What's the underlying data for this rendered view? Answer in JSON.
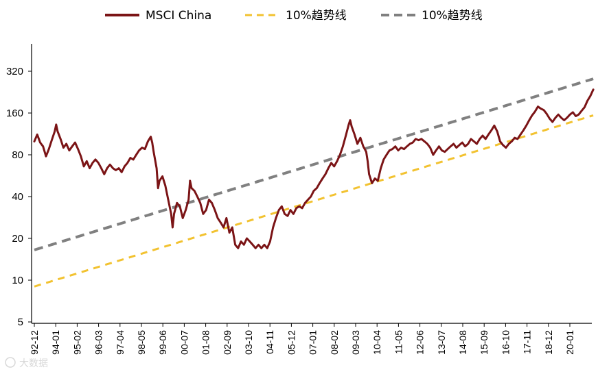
{
  "chart_data": {
    "type": "line",
    "y_scale": "log2",
    "ylim": [
      5,
      400
    ],
    "y_ticks": [
      "5",
      "10",
      "20",
      "40",
      "80",
      "160",
      "320"
    ],
    "x_ticks": [
      "92-12",
      "94-01",
      "95-02",
      "96-03",
      "97-04",
      "98-05",
      "99-06",
      "00-07",
      "01-08",
      "02-09",
      "03-10",
      "04-11",
      "05-12",
      "07-01",
      "08-02",
      "09-03",
      "10-04",
      "11-05",
      "12-06",
      "13-07",
      "14-08",
      "15-09",
      "16-10",
      "17-11",
      "18-12",
      "20-01"
    ],
    "grid": false,
    "legend_position": "top",
    "series": [
      {
        "name": "MSCI China",
        "style": "solid",
        "color": "#7b1416",
        "points": [
          [
            0,
            100
          ],
          [
            2,
            112
          ],
          [
            4,
            98
          ],
          [
            6,
            92
          ],
          [
            8,
            78
          ],
          [
            10,
            88
          ],
          [
            12,
            102
          ],
          [
            14,
            118
          ],
          [
            15,
            132
          ],
          [
            16,
            118
          ],
          [
            18,
            104
          ],
          [
            20,
            90
          ],
          [
            22,
            96
          ],
          [
            24,
            86
          ],
          [
            26,
            92
          ],
          [
            28,
            98
          ],
          [
            30,
            88
          ],
          [
            32,
            78
          ],
          [
            34,
            66
          ],
          [
            36,
            72
          ],
          [
            38,
            64
          ],
          [
            40,
            70
          ],
          [
            42,
            74
          ],
          [
            44,
            70
          ],
          [
            46,
            64
          ],
          [
            48,
            58
          ],
          [
            50,
            64
          ],
          [
            52,
            68
          ],
          [
            54,
            64
          ],
          [
            56,
            62
          ],
          [
            58,
            64
          ],
          [
            60,
            60
          ],
          [
            62,
            66
          ],
          [
            64,
            70
          ],
          [
            66,
            76
          ],
          [
            68,
            74
          ],
          [
            70,
            80
          ],
          [
            72,
            86
          ],
          [
            74,
            90
          ],
          [
            76,
            88
          ],
          [
            78,
            100
          ],
          [
            80,
            108
          ],
          [
            81,
            98
          ],
          [
            82,
            84
          ],
          [
            84,
            64
          ],
          [
            85,
            46
          ],
          [
            86,
            52
          ],
          [
            88,
            56
          ],
          [
            90,
            48
          ],
          [
            92,
            38
          ],
          [
            94,
            30
          ],
          [
            95,
            24
          ],
          [
            96,
            30
          ],
          [
            98,
            36
          ],
          [
            100,
            34
          ],
          [
            102,
            28
          ],
          [
            104,
            32
          ],
          [
            106,
            38
          ],
          [
            107,
            52
          ],
          [
            108,
            46
          ],
          [
            110,
            44
          ],
          [
            112,
            40
          ],
          [
            114,
            36
          ],
          [
            116,
            30
          ],
          [
            118,
            32
          ],
          [
            120,
            38
          ],
          [
            122,
            36
          ],
          [
            124,
            32
          ],
          [
            126,
            28
          ],
          [
            128,
            26
          ],
          [
            130,
            24
          ],
          [
            132,
            28
          ],
          [
            134,
            22
          ],
          [
            136,
            24
          ],
          [
            138,
            18
          ],
          [
            140,
            17
          ],
          [
            142,
            19
          ],
          [
            144,
            18
          ],
          [
            146,
            20
          ],
          [
            148,
            19
          ],
          [
            150,
            18
          ],
          [
            152,
            17
          ],
          [
            154,
            18
          ],
          [
            156,
            17
          ],
          [
            158,
            18
          ],
          [
            160,
            17
          ],
          [
            162,
            19
          ],
          [
            164,
            24
          ],
          [
            166,
            28
          ],
          [
            168,
            32
          ],
          [
            170,
            34
          ],
          [
            172,
            30
          ],
          [
            174,
            29
          ],
          [
            176,
            32
          ],
          [
            178,
            30
          ],
          [
            180,
            33
          ],
          [
            182,
            34
          ],
          [
            184,
            33
          ],
          [
            186,
            36
          ],
          [
            188,
            38
          ],
          [
            190,
            40
          ],
          [
            192,
            44
          ],
          [
            194,
            46
          ],
          [
            196,
            50
          ],
          [
            198,
            54
          ],
          [
            200,
            58
          ],
          [
            202,
            64
          ],
          [
            204,
            70
          ],
          [
            206,
            66
          ],
          [
            208,
            72
          ],
          [
            210,
            80
          ],
          [
            212,
            92
          ],
          [
            214,
            110
          ],
          [
            216,
            132
          ],
          [
            217,
            142
          ],
          [
            218,
            128
          ],
          [
            220,
            112
          ],
          [
            222,
            96
          ],
          [
            224,
            106
          ],
          [
            226,
            92
          ],
          [
            228,
            84
          ],
          [
            229,
            72
          ],
          [
            230,
            58
          ],
          [
            232,
            50
          ],
          [
            234,
            54
          ],
          [
            236,
            52
          ],
          [
            238,
            64
          ],
          [
            240,
            74
          ],
          [
            242,
            80
          ],
          [
            244,
            86
          ],
          [
            246,
            88
          ],
          [
            248,
            92
          ],
          [
            250,
            86
          ],
          [
            252,
            90
          ],
          [
            254,
            88
          ],
          [
            256,
            92
          ],
          [
            258,
            96
          ],
          [
            260,
            98
          ],
          [
            262,
            104
          ],
          [
            264,
            102
          ],
          [
            266,
            104
          ],
          [
            268,
            100
          ],
          [
            270,
            96
          ],
          [
            272,
            90
          ],
          [
            274,
            80
          ],
          [
            276,
            86
          ],
          [
            278,
            92
          ],
          [
            280,
            86
          ],
          [
            282,
            84
          ],
          [
            284,
            88
          ],
          [
            286,
            92
          ],
          [
            288,
            96
          ],
          [
            290,
            90
          ],
          [
            292,
            94
          ],
          [
            294,
            98
          ],
          [
            296,
            92
          ],
          [
            298,
            96
          ],
          [
            300,
            104
          ],
          [
            302,
            100
          ],
          [
            304,
            96
          ],
          [
            306,
            104
          ],
          [
            308,
            110
          ],
          [
            310,
            104
          ],
          [
            312,
            112
          ],
          [
            314,
            120
          ],
          [
            316,
            130
          ],
          [
            318,
            118
          ],
          [
            320,
            100
          ],
          [
            322,
            94
          ],
          [
            324,
            90
          ],
          [
            326,
            96
          ],
          [
            328,
            100
          ],
          [
            330,
            106
          ],
          [
            332,
            104
          ],
          [
            334,
            112
          ],
          [
            336,
            120
          ],
          [
            338,
            130
          ],
          [
            340,
            142
          ],
          [
            342,
            154
          ],
          [
            344,
            164
          ],
          [
            346,
            178
          ],
          [
            348,
            172
          ],
          [
            350,
            168
          ],
          [
            352,
            158
          ],
          [
            354,
            146
          ],
          [
            356,
            138
          ],
          [
            358,
            148
          ],
          [
            360,
            156
          ],
          [
            362,
            148
          ],
          [
            364,
            142
          ],
          [
            366,
            148
          ],
          [
            368,
            156
          ],
          [
            370,
            162
          ],
          [
            372,
            152
          ],
          [
            374,
            156
          ],
          [
            376,
            166
          ],
          [
            378,
            176
          ],
          [
            380,
            196
          ],
          [
            382,
            212
          ],
          [
            384,
            236
          ]
        ]
      },
      {
        "name": "10%趋势线",
        "style": "dashed",
        "color": "#f2c230",
        "points": [
          [
            0,
            9.0
          ],
          [
            384,
            154
          ]
        ]
      },
      {
        "name": "10%趋势线",
        "style": "dashed",
        "color": "#808080",
        "points": [
          [
            0,
            16.5
          ],
          [
            384,
            282
          ]
        ]
      }
    ]
  },
  "watermark": "大数据"
}
